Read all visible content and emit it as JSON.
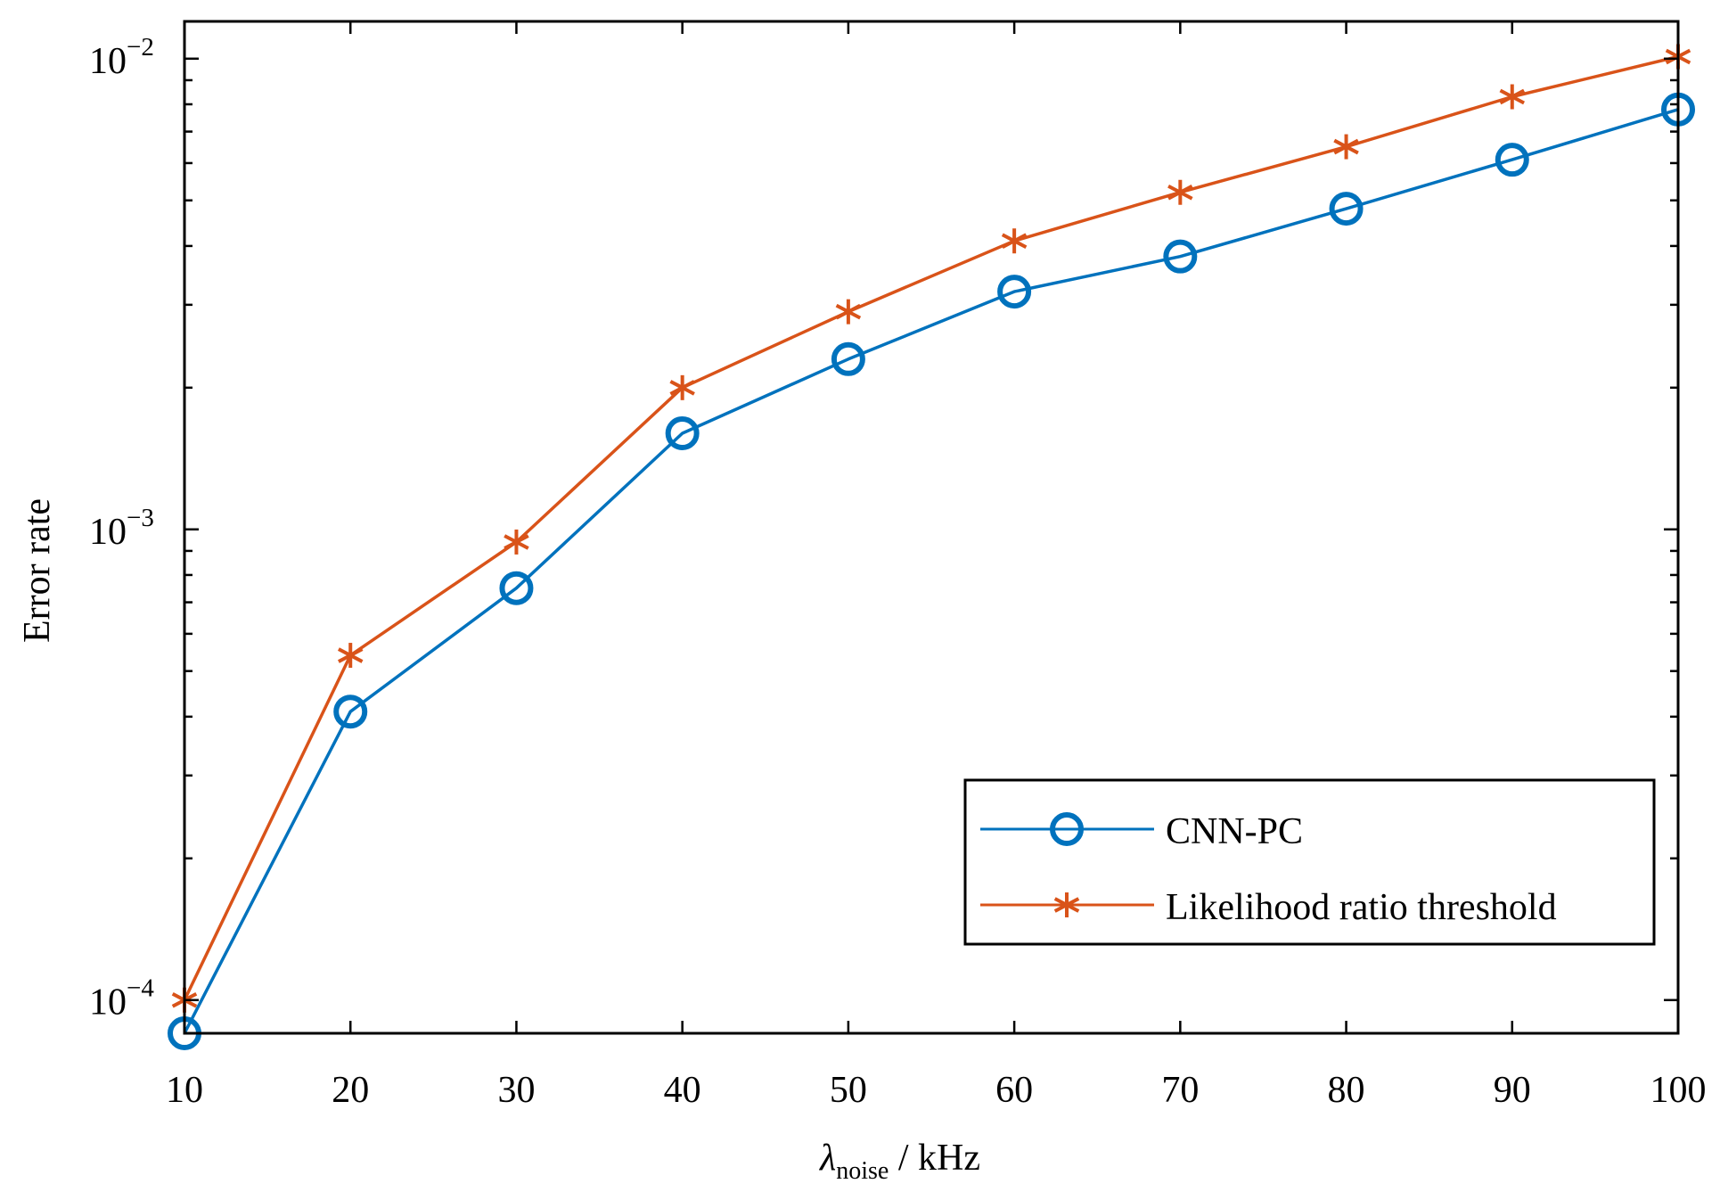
{
  "chart_data": {
    "type": "line",
    "title": "",
    "xlabel": {
      "symbol": "λ",
      "subscript": "noise",
      "unit": " / kHz"
    },
    "ylabel": "Error rate",
    "yscale": "log",
    "xlim": [
      10,
      100
    ],
    "ylim": [
      8.5e-05,
      0.012
    ],
    "x": [
      10,
      20,
      30,
      40,
      50,
      60,
      70,
      80,
      90,
      100
    ],
    "x_tick_labels": [
      "10",
      "20",
      "30",
      "40",
      "50",
      "60",
      "70",
      "80",
      "90",
      "100"
    ],
    "y_major_ticks": [
      {
        "value": 0.0001,
        "base": "10",
        "exp": "−4"
      },
      {
        "value": 0.001,
        "base": "10",
        "exp": "−3"
      },
      {
        "value": 0.01,
        "base": "10",
        "exp": "−2"
      }
    ],
    "y_minor_ticks": [
      0.0002,
      0.0003,
      0.0004,
      0.0005,
      0.0006,
      0.0007,
      0.0008,
      0.0009,
      0.002,
      0.003,
      0.004,
      0.005,
      0.006,
      0.007,
      0.008,
      0.009
    ],
    "grid": false,
    "legend_position": "bottom-right",
    "series": [
      {
        "name": "CNN-PC",
        "color": "#0072BD",
        "marker": "circle",
        "values": [
          8.5e-05,
          0.00041,
          0.00075,
          0.0016,
          0.0023,
          0.0032,
          0.0038,
          0.0048,
          0.0061,
          0.0078
        ]
      },
      {
        "name": "Likelihood ratio threshold",
        "color": "#D95319",
        "marker": "asterisk",
        "values": [
          0.0001,
          0.00054,
          0.00094,
          0.002,
          0.0029,
          0.0041,
          0.0052,
          0.0065,
          0.0083,
          0.0101
        ]
      }
    ]
  }
}
